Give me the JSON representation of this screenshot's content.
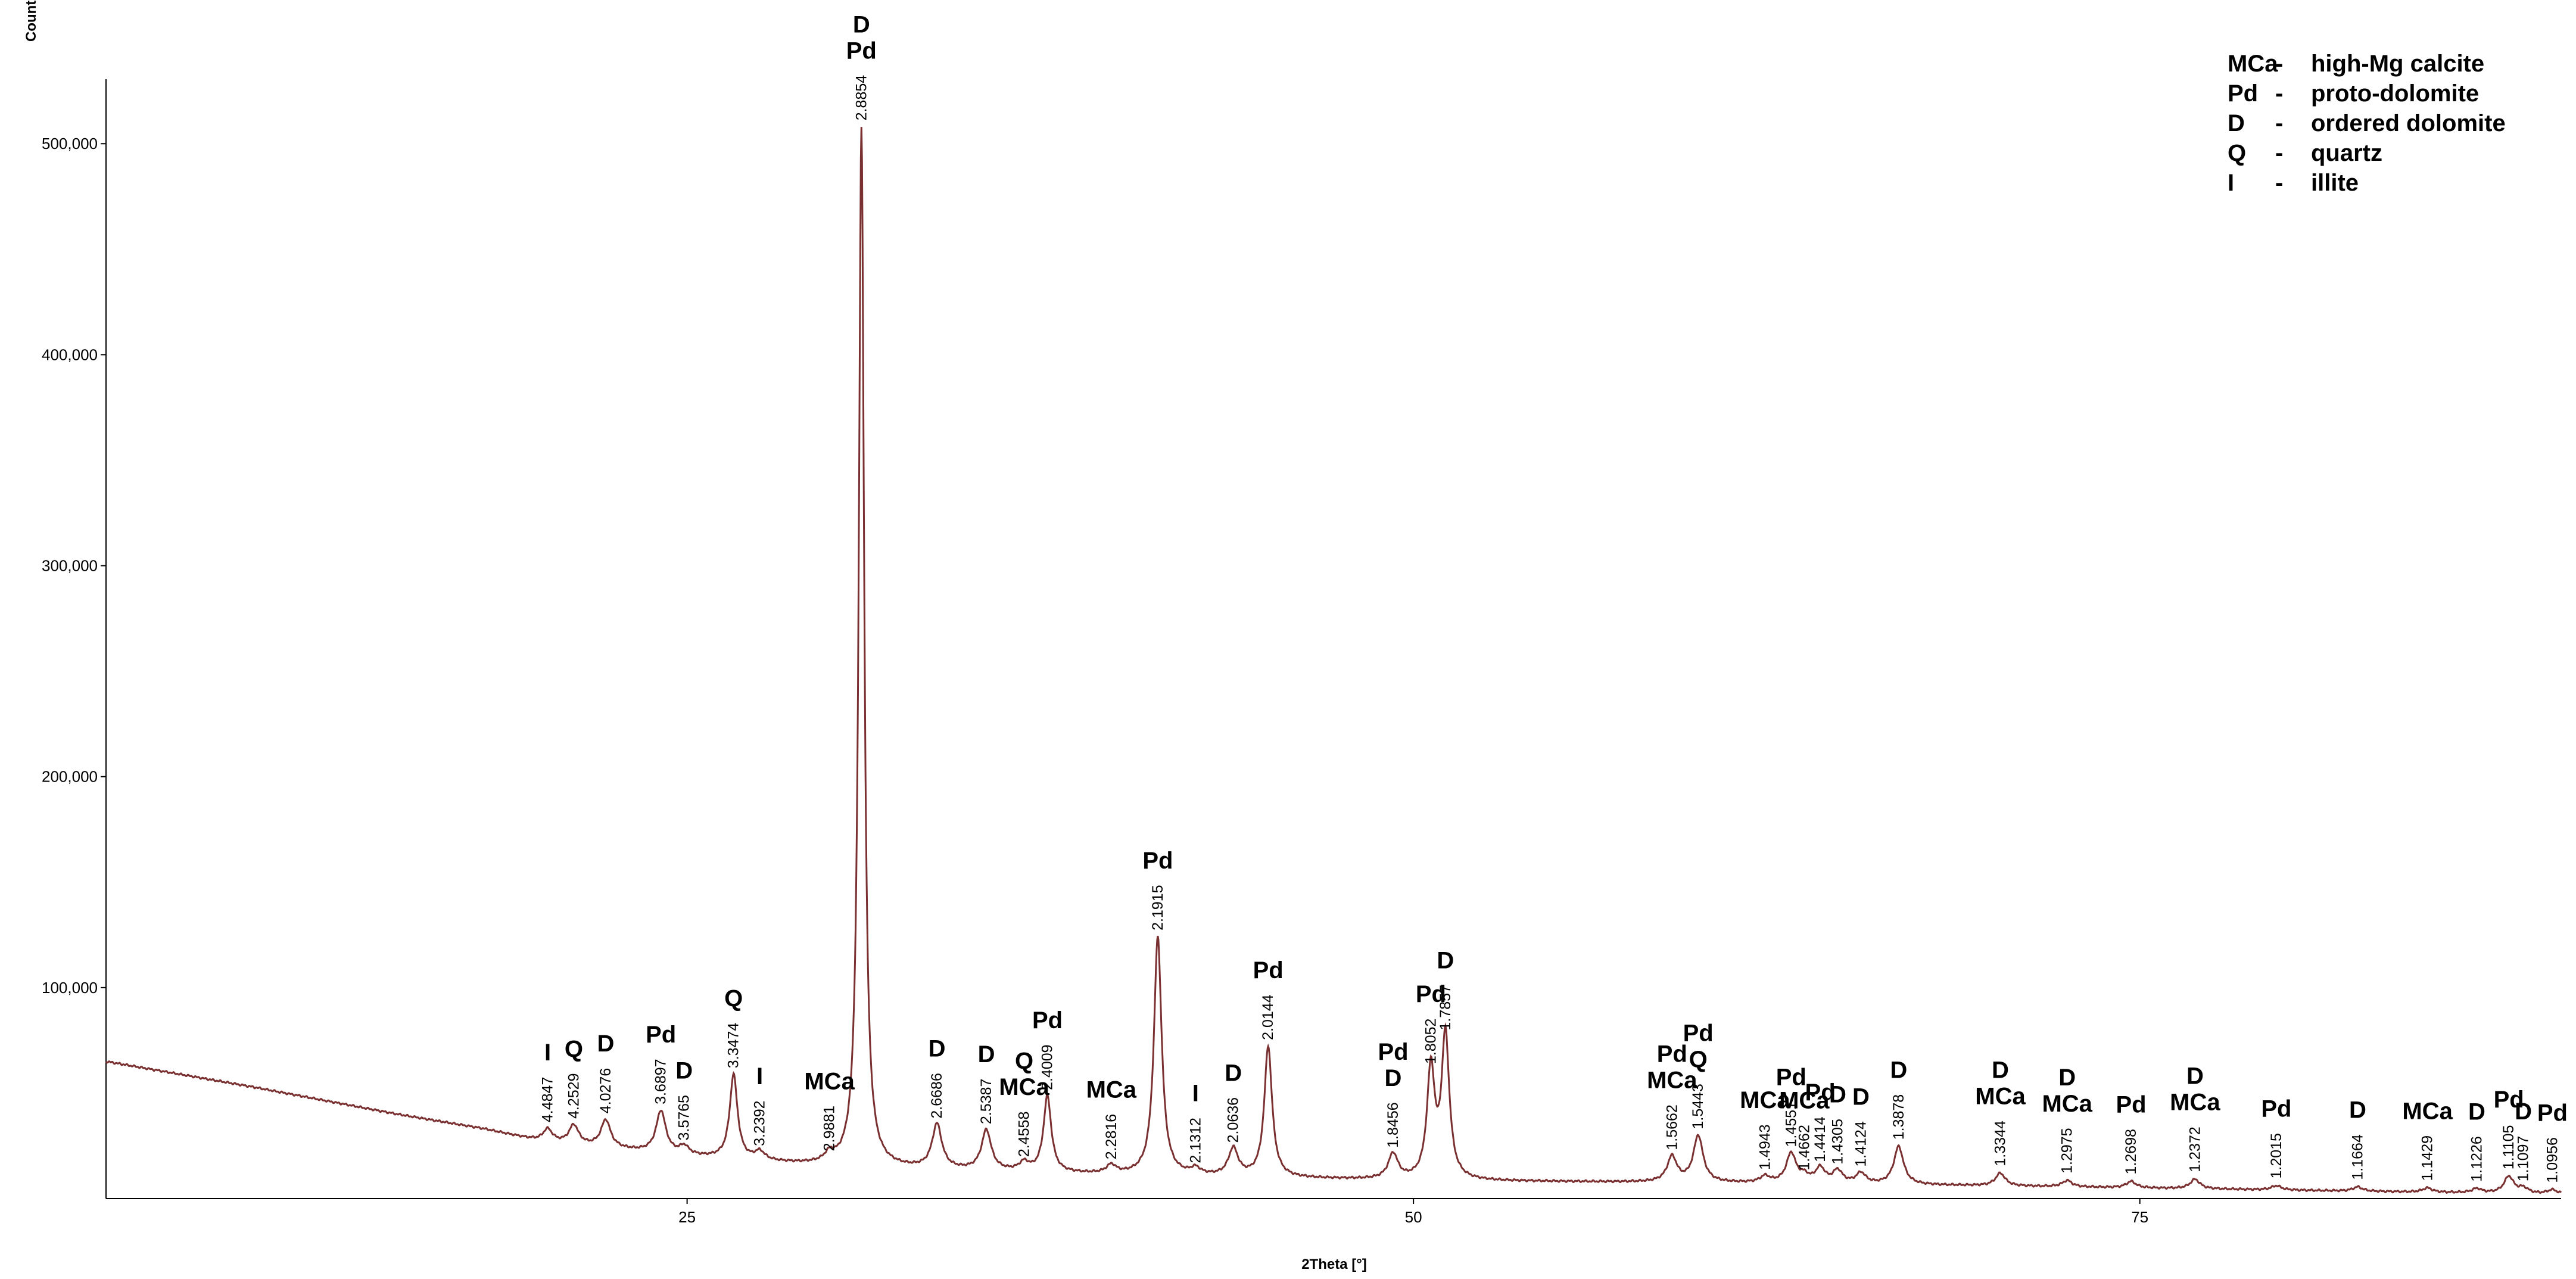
{
  "chart_data": {
    "type": "line",
    "xlabel": "2Theta [°]",
    "ylabel": "Counts",
    "xlim": [
      5,
      89.5
    ],
    "ylim": [
      0,
      530000
    ],
    "x_ticks": [
      25,
      50,
      75
    ],
    "x_tick_labels": [
      "25",
      "50",
      "75"
    ],
    "y_ticks": [
      100000,
      200000,
      300000,
      400000,
      500000
    ],
    "y_tick_labels": [
      "100,000",
      "200,000",
      "300,000",
      "400,000",
      "500,000"
    ],
    "line_color": "#7a3030",
    "grid": false,
    "legend_position": "top-right",
    "legend": [
      {
        "code": "MCa",
        "dash": "-",
        "text": "high-Mg calcite"
      },
      {
        "code": "Pd",
        "dash": "-",
        "text": "proto-dolomite"
      },
      {
        "code": "D",
        "dash": "-",
        "text": "ordered dolomite"
      },
      {
        "code": "Q",
        "dash": "-",
        "text": "quartz"
      },
      {
        "code": "I",
        "dash": "-",
        "text": "illite"
      }
    ],
    "background": [
      [
        5,
        65000
      ],
      [
        10,
        53000
      ],
      [
        15,
        40000
      ],
      [
        18,
        33000
      ],
      [
        20,
        27000
      ],
      [
        25,
        20000
      ],
      [
        30,
        15000
      ],
      [
        40,
        11000
      ],
      [
        50,
        8500
      ],
      [
        60,
        7500
      ],
      [
        70,
        6000
      ],
      [
        80,
        4000
      ],
      [
        89.5,
        2000
      ]
    ],
    "peaks": [
      {
        "x": 20.2,
        "y": 6000,
        "d": "4.4847",
        "phases": [
          "I"
        ]
      },
      {
        "x": 21.1,
        "y": 9000,
        "d": "4.2529",
        "phases": [
          "Q"
        ]
      },
      {
        "x": 22.2,
        "y": 13000,
        "d": "4.0276",
        "phases": [
          "D"
        ]
      },
      {
        "x": 24.1,
        "y": 20000,
        "d": "3.6897",
        "phases": [
          "Pd"
        ]
      },
      {
        "x": 24.9,
        "y": 4000,
        "d": "3.5765",
        "phases": [
          "D"
        ]
      },
      {
        "x": 26.6,
        "y": 40000,
        "d": "3.3474",
        "phases": [
          "Q"
        ]
      },
      {
        "x": 27.5,
        "y": 4000,
        "d": "3.2392",
        "phases": [
          "I"
        ]
      },
      {
        "x": 29.9,
        "y": 4000,
        "d": "2.9881",
        "phases": [
          "MCa"
        ]
      },
      {
        "x": 31.0,
        "y": 493000,
        "d": "2.8854",
        "phases": [
          "D",
          "Pd"
        ]
      },
      {
        "x": 33.6,
        "y": 21000,
        "d": "2.6686",
        "phases": [
          "D"
        ]
      },
      {
        "x": 35.3,
        "y": 19000,
        "d": "2.5387",
        "phases": [
          "D"
        ]
      },
      {
        "x": 36.6,
        "y": 4000,
        "d": "2.4558",
        "phases": [
          "Q",
          "MCa"
        ]
      },
      {
        "x": 37.4,
        "y": 36000,
        "d": "2.4009",
        "phases": [
          "Pd"
        ]
      },
      {
        "x": 39.6,
        "y": 4000,
        "d": "2.2816",
        "phases": [
          "MCa"
        ]
      },
      {
        "x": 41.2,
        "y": 113000,
        "d": "2.1915",
        "phases": [
          "Pd"
        ]
      },
      {
        "x": 42.5,
        "y": 3000,
        "d": "2.1312",
        "phases": [
          "I"
        ]
      },
      {
        "x": 43.8,
        "y": 13000,
        "d": "2.0636",
        "phases": [
          "D"
        ]
      },
      {
        "x": 45.0,
        "y": 62000,
        "d": "2.0144",
        "phases": [
          "Pd"
        ]
      },
      {
        "x": 49.3,
        "y": 12000,
        "d": "1.8456",
        "phases": [
          "Pd",
          "D"
        ]
      },
      {
        "x": 50.6,
        "y": 52000,
        "d": "1.8052",
        "phases": [
          "Pd"
        ]
      },
      {
        "x": 51.1,
        "y": 68000,
        "d": "1.7857",
        "phases": [
          "D"
        ]
      },
      {
        "x": 58.9,
        "y": 12000,
        "d": "1.5662",
        "phases": [
          "Pd",
          "MCa"
        ]
      },
      {
        "x": 59.8,
        "y": 22000,
        "d": "1.5443",
        "phases": [
          "Pd",
          "Q"
        ]
      },
      {
        "x": 62.1,
        "y": 3000,
        "d": "1.4943",
        "phases": [
          "MCa"
        ]
      },
      {
        "x": 63.0,
        "y": 14000,
        "d": "1.4551",
        "phases": [
          "Pd"
        ]
      },
      {
        "x": 63.45,
        "y": 3000,
        "d": "1.4662",
        "phases": [
          "MCa"
        ]
      },
      {
        "x": 64.0,
        "y": 7000,
        "d": "1.4414",
        "phases": [
          "Pd"
        ]
      },
      {
        "x": 64.6,
        "y": 6000,
        "d": "1.4305",
        "phases": [
          "D"
        ]
      },
      {
        "x": 65.4,
        "y": 5000,
        "d": "1.4124",
        "phases": [
          "D"
        ]
      },
      {
        "x": 66.7,
        "y": 18000,
        "d": "1.3878",
        "phases": [
          "D"
        ]
      },
      {
        "x": 70.2,
        "y": 6000,
        "d": "1.3344",
        "phases": [
          "D",
          "MCa"
        ]
      },
      {
        "x": 72.5,
        "y": 3000,
        "d": "1.2975",
        "phases": [
          "D",
          "MCa"
        ]
      },
      {
        "x": 74.7,
        "y": 3000,
        "d": "1.2698",
        "phases": [
          "Pd"
        ]
      },
      {
        "x": 76.9,
        "y": 4500,
        "d": "1.2372",
        "phases": [
          "D",
          "MCa"
        ]
      },
      {
        "x": 79.7,
        "y": 2000,
        "d": "1.2015",
        "phases": [
          "Pd"
        ]
      },
      {
        "x": 82.5,
        "y": 2000,
        "d": "1.1664",
        "phases": [
          "D"
        ]
      },
      {
        "x": 84.9,
        "y": 2000,
        "d": "1.1429",
        "phases": [
          "MCa"
        ]
      },
      {
        "x": 86.6,
        "y": 2000,
        "d": "1.1226",
        "phases": [
          "D"
        ]
      },
      {
        "x": 87.7,
        "y": 8000,
        "d": "1.1105",
        "phases": [
          "Pd"
        ]
      },
      {
        "x": 88.2,
        "y": 2500,
        "d": "1.1097",
        "phases": [
          "D"
        ]
      },
      {
        "x": 89.2,
        "y": 2000,
        "d": "1.0956",
        "phases": [
          "Pd"
        ]
      }
    ]
  }
}
